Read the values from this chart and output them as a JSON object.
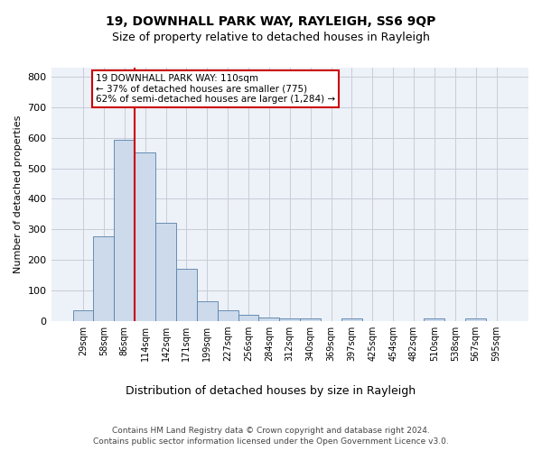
{
  "title": "19, DOWNHALL PARK WAY, RAYLEIGH, SS6 9QP",
  "subtitle": "Size of property relative to detached houses in Rayleigh",
  "xlabel": "Distribution of detached houses by size in Rayleigh",
  "ylabel": "Number of detached properties",
  "footer_line1": "Contains HM Land Registry data © Crown copyright and database right 2024.",
  "footer_line2": "Contains public sector information licensed under the Open Government Licence v3.0.",
  "categories": [
    "29sqm",
    "58sqm",
    "86sqm",
    "114sqm",
    "142sqm",
    "171sqm",
    "199sqm",
    "227sqm",
    "256sqm",
    "284sqm",
    "312sqm",
    "340sqm",
    "369sqm",
    "397sqm",
    "425sqm",
    "454sqm",
    "482sqm",
    "510sqm",
    "538sqm",
    "567sqm",
    "595sqm"
  ],
  "values": [
    35,
    278,
    593,
    553,
    320,
    170,
    65,
    33,
    20,
    11,
    8,
    8,
    0,
    7,
    0,
    0,
    0,
    7,
    0,
    7,
    0
  ],
  "bar_color": "#ccdaeb",
  "bar_edge_color": "#5580aa",
  "grid_color": "#c8ccd8",
  "background_color": "#edf1f8",
  "vline_index": 2.5,
  "vline_color": "#cc0000",
  "annotation_text": "19 DOWNHALL PARK WAY: 110sqm\n← 37% of detached houses are smaller (775)\n62% of semi-detached houses are larger (1,284) →",
  "annotation_box_facecolor": "#ffffff",
  "annotation_box_edgecolor": "#cc0000",
  "ylim": [
    0,
    830
  ],
  "yticks": [
    0,
    100,
    200,
    300,
    400,
    500,
    600,
    700,
    800
  ]
}
